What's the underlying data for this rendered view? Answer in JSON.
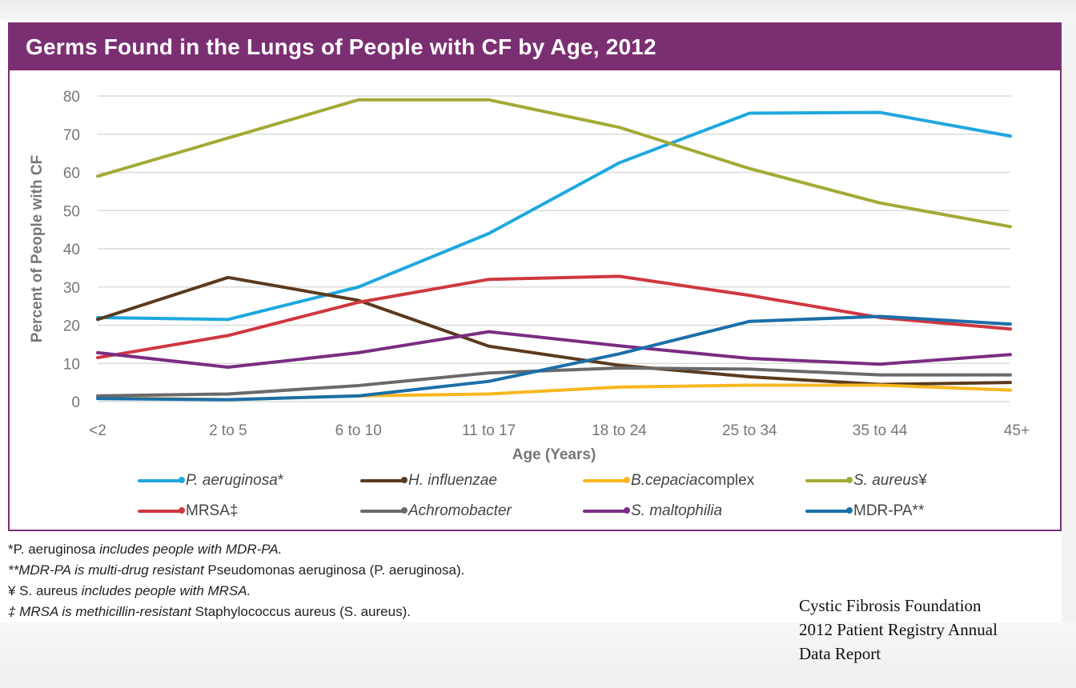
{
  "title": "Germs Found in the Lungs of People with CF by Age, 2012",
  "chart_data": {
    "type": "line",
    "title": "Germs Found in the Lungs of People with CF by Age, 2012",
    "xlabel": "Age (Years)",
    "ylabel": "Percent of People with CF",
    "categories": [
      "<2",
      "2 to 5",
      "6 to 10",
      "11 to 17",
      "18 to 24",
      "25 to 34",
      "35 to 44",
      "45+"
    ],
    "ylim": [
      0,
      80
    ],
    "yticks": [
      0,
      10,
      20,
      30,
      40,
      50,
      60,
      70,
      80
    ],
    "grid": true,
    "legend_position": "bottom",
    "series": [
      {
        "name": "P. aeruginosa*",
        "legend_main": "P. aeruginosa",
        "legend_suffix": "*",
        "italic": true,
        "color": "#1fa8e0",
        "values": [
          22.0,
          21.5,
          30.0,
          44.0,
          62.5,
          75.5,
          75.7,
          69.5
        ]
      },
      {
        "name": "H. influenzae",
        "legend_main": "H. influenzae",
        "legend_suffix": "",
        "italic": true,
        "color": "#5a3a1e",
        "values": [
          21.5,
          32.5,
          26.5,
          14.5,
          9.5,
          6.5,
          4.5,
          5.0
        ]
      },
      {
        "name": "B.cepacia complex",
        "legend_main": "B.cepacia",
        "legend_suffix": " complex",
        "italic": true,
        "color": "#f7b720",
        "values": [
          1.0,
          0.5,
          1.5,
          2.0,
          3.8,
          4.3,
          4.3,
          3.0
        ]
      },
      {
        "name": "S. aureus¥",
        "legend_main": "S. aureus",
        "legend_suffix": "¥",
        "italic": true,
        "color": "#a3aa36",
        "values": [
          59.0,
          69.0,
          79.0,
          79.0,
          71.8,
          61.0,
          52.0,
          45.8
        ]
      },
      {
        "name": "MRSA‡",
        "legend_main": "MRSA",
        "legend_suffix": "‡",
        "italic": false,
        "color": "#d0373f",
        "values": [
          11.5,
          17.3,
          26.0,
          32.0,
          32.8,
          27.8,
          22.0,
          19.0
        ]
      },
      {
        "name": "Achromobacter",
        "legend_main": "Achromobacter",
        "legend_suffix": "",
        "italic": true,
        "color": "#6a6a6a",
        "values": [
          1.5,
          2.0,
          4.2,
          7.5,
          8.8,
          8.5,
          7.0,
          7.0
        ]
      },
      {
        "name": "S. maltophilia",
        "legend_main": "S. maltophilia",
        "legend_suffix": "",
        "italic": true,
        "color": "#7a2d82",
        "values": [
          12.8,
          9.0,
          12.8,
          18.3,
          14.6,
          11.3,
          9.8,
          12.3
        ]
      },
      {
        "name": "MDR-PA**",
        "legend_main": "MDR-PA",
        "legend_suffix": "**",
        "italic": false,
        "color": "#1b6fa8",
        "values": [
          0.8,
          0.5,
          1.5,
          5.3,
          12.5,
          21.0,
          22.3,
          20.3
        ]
      }
    ]
  },
  "footnotes": [
    {
      "parts": [
        {
          "t": "*P. aeruginosa ",
          "i": false
        },
        {
          "t": "includes people with MDR-PA.",
          "i": true
        }
      ]
    },
    {
      "parts": [
        {
          "t": "**MDR-PA is multi-drug resistant ",
          "i": true
        },
        {
          "t": "Pseudomonas aeruginosa (P. aeruginosa).",
          "i": false
        }
      ]
    },
    {
      "parts": [
        {
          "t": "¥ S. aureus ",
          "i": false
        },
        {
          "t": "includes people with MRSA.",
          "i": true
        }
      ]
    },
    {
      "parts": [
        {
          "t": "‡ MRSA is methicillin-resistant ",
          "i": true
        },
        {
          "t": "Staphylococcus aureus (S. aureus).",
          "i": false
        }
      ]
    }
  ],
  "source": [
    "Cystic Fibrosis Foundation",
    "2012 Patient Registry Annual",
    "Data Report"
  ]
}
